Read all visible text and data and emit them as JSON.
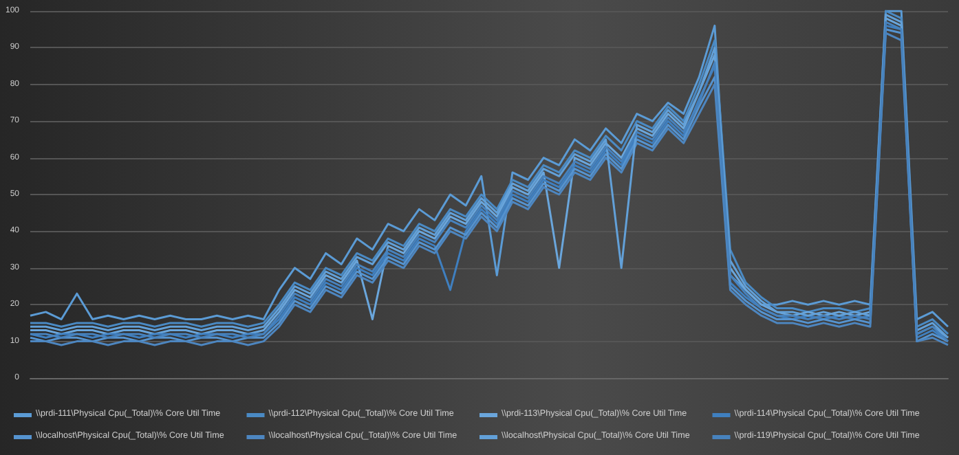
{
  "chart_data": {
    "type": "line",
    "categories": [
      null,
      null,
      null,
      null,
      null,
      null,
      null,
      null,
      null,
      null,
      null,
      null,
      null,
      null,
      null,
      null,
      null,
      null,
      null,
      null,
      null,
      null,
      null,
      null,
      null,
      null,
      null,
      null,
      null,
      null,
      null,
      null,
      null,
      null,
      null,
      null,
      null,
      null,
      null,
      null,
      null,
      null,
      null,
      null,
      null,
      null,
      null,
      null,
      null,
      null,
      null,
      null,
      null,
      null,
      null,
      null,
      null,
      null,
      null,
      null
    ],
    "ylim": [
      0,
      100
    ],
    "yticks": [
      0,
      10,
      20,
      30,
      40,
      50,
      60,
      70,
      80,
      90,
      100
    ],
    "grid": "y",
    "legend": "bottom",
    "series": [
      {
        "name": "\\\\prdi-111\\Physical Cpu(_Total)\\% Core Util Time",
        "color": "#5b9bd5",
        "values": [
          17,
          18,
          16,
          23,
          16,
          17,
          16,
          17,
          16,
          17,
          16,
          16,
          17,
          16,
          17,
          16,
          24,
          30,
          27,
          34,
          31,
          38,
          35,
          42,
          40,
          46,
          43,
          50,
          47,
          55,
          28,
          56,
          54,
          60,
          58,
          65,
          62,
          68,
          64,
          72,
          70,
          75,
          72,
          82,
          96,
          28,
          24,
          20,
          20,
          21,
          20,
          21,
          20,
          21,
          20,
          100,
          100,
          16,
          18,
          14
        ]
      },
      {
        "name": "\\\\prdi-112\\Physical Cpu(_Total)\\% Core Util Time",
        "color": "#4a8ac4",
        "values": [
          15,
          15,
          14,
          15,
          15,
          14,
          15,
          15,
          14,
          15,
          15,
          14,
          15,
          15,
          14,
          15,
          20,
          26,
          24,
          30,
          28,
          34,
          32,
          38,
          36,
          42,
          40,
          46,
          44,
          50,
          46,
          54,
          52,
          58,
          56,
          62,
          60,
          66,
          62,
          70,
          68,
          74,
          70,
          80,
          92,
          35,
          26,
          22,
          19,
          19,
          18,
          19,
          19,
          18,
          19,
          100,
          98,
          14,
          16,
          12
        ]
      },
      {
        "name": "\\\\prdi-113\\Physical Cpu(_Total)\\% Core Util Time",
        "color": "#6aa6dc",
        "values": [
          13,
          13,
          12,
          13,
          13,
          12,
          13,
          13,
          12,
          13,
          13,
          12,
          13,
          13,
          12,
          13,
          18,
          24,
          22,
          28,
          26,
          32,
          16,
          36,
          34,
          40,
          38,
          44,
          42,
          48,
          44,
          52,
          50,
          56,
          30,
          60,
          58,
          64,
          60,
          68,
          66,
          72,
          68,
          78,
          88,
          30,
          24,
          20,
          18,
          17,
          18,
          17,
          18,
          17,
          18,
          98,
          96,
          12,
          14,
          11
        ]
      },
      {
        "name": "\\\\prdi-114\\Physical Cpu(_Total)\\% Core Util Time",
        "color": "#3f7fbf",
        "values": [
          12,
          11,
          12,
          12,
          11,
          12,
          12,
          11,
          12,
          12,
          11,
          12,
          12,
          11,
          12,
          12,
          16,
          22,
          20,
          26,
          24,
          30,
          28,
          34,
          32,
          38,
          36,
          24,
          40,
          46,
          42,
          50,
          48,
          54,
          52,
          58,
          56,
          62,
          58,
          66,
          64,
          70,
          66,
          76,
          85,
          26,
          22,
          19,
          17,
          16,
          17,
          16,
          17,
          16,
          17,
          96,
          95,
          11,
          13,
          10
        ]
      },
      {
        "name": "\\\\localhost\\Physical Cpu(_Total)\\% Core Util Time",
        "color": "#5593cf",
        "values": [
          11,
          10,
          11,
          11,
          10,
          11,
          11,
          10,
          11,
          11,
          10,
          11,
          11,
          10,
          11,
          11,
          15,
          21,
          19,
          25,
          23,
          29,
          27,
          33,
          31,
          37,
          35,
          41,
          39,
          45,
          41,
          49,
          47,
          53,
          51,
          57,
          55,
          61,
          57,
          65,
          63,
          69,
          65,
          74,
          82,
          25,
          21,
          18,
          16,
          16,
          15,
          16,
          15,
          16,
          15,
          95,
          94,
          10,
          12,
          10
        ]
      },
      {
        "name": "\\\\localhost\\Physical Cpu(_Total)\\% Core Util Time",
        "color": "#4d86c0",
        "values": [
          10,
          10,
          9,
          10,
          10,
          9,
          10,
          10,
          9,
          10,
          10,
          9,
          10,
          10,
          9,
          10,
          14,
          20,
          18,
          24,
          22,
          28,
          26,
          32,
          30,
          36,
          34,
          40,
          38,
          44,
          40,
          48,
          46,
          52,
          50,
          56,
          54,
          60,
          56,
          64,
          62,
          68,
          64,
          72,
          80,
          24,
          20,
          17,
          15,
          15,
          14,
          15,
          14,
          15,
          14,
          94,
          92,
          10,
          11,
          9
        ]
      },
      {
        "name": "\\\\localhost\\Physical Cpu(_Total)\\% Core Util Time",
        "color": "#62a0d8",
        "values": [
          14,
          14,
          13,
          14,
          14,
          13,
          14,
          14,
          13,
          14,
          14,
          13,
          14,
          14,
          13,
          14,
          19,
          25,
          23,
          29,
          27,
          33,
          31,
          37,
          35,
          41,
          39,
          45,
          43,
          49,
          45,
          53,
          51,
          57,
          55,
          61,
          59,
          65,
          30,
          69,
          67,
          73,
          69,
          78,
          90,
          32,
          25,
          21,
          18,
          18,
          17,
          18,
          17,
          18,
          17,
          99,
          97,
          13,
          15,
          11
        ]
      },
      {
        "name": "\\\\prdi-119\\Physical Cpu(_Total)\\% Core Util Time",
        "color": "#4782bd",
        "values": [
          12,
          12,
          11,
          12,
          12,
          11,
          12,
          12,
          11,
          12,
          12,
          11,
          12,
          12,
          11,
          12,
          17,
          23,
          21,
          27,
          25,
          31,
          29,
          35,
          33,
          39,
          37,
          43,
          41,
          47,
          43,
          51,
          49,
          55,
          53,
          59,
          57,
          63,
          59,
          67,
          65,
          71,
          67,
          75,
          86,
          28,
          23,
          19,
          17,
          17,
          16,
          17,
          16,
          17,
          16,
          97,
          95,
          12,
          14,
          10
        ]
      }
    ]
  }
}
